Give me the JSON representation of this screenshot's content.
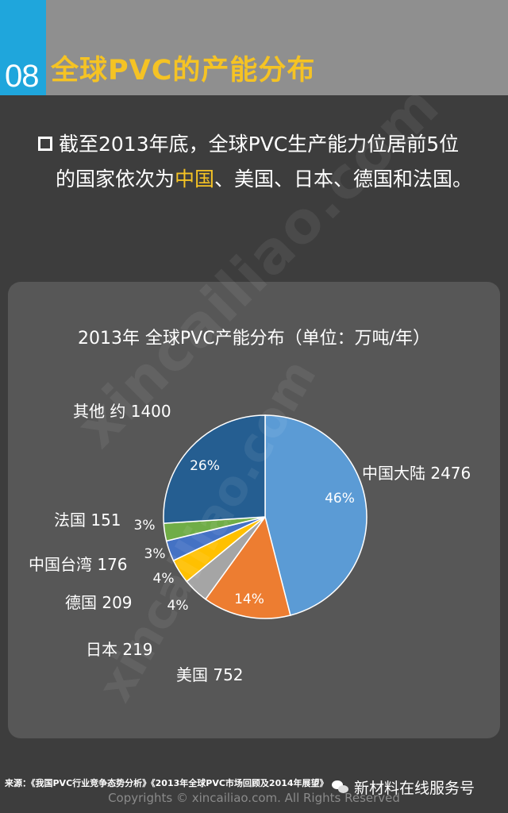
{
  "header": {
    "number": "08",
    "title": "全球PVC的产能分布"
  },
  "intro": {
    "line1": "截至2013年底，全球PVC生产能力位居前5位",
    "line2_prefix": "的国家依次为",
    "line2_highlight": "中国",
    "line2_suffix": "、美国、日本、德国和法国。"
  },
  "watermark": {
    "text": "xincailiao.com"
  },
  "colors": {
    "header_bg": "#8f8f8f",
    "number_box": "#1fa6dc",
    "title": "#f5c324",
    "highlight": "#f5c324",
    "panel_bg": "#575757"
  },
  "chart_data": {
    "type": "pie",
    "title": "2013年 全球PVC产能分布（单位：万吨/年）",
    "slices": [
      {
        "label": "中国大陆",
        "value": 2476,
        "percent_label": "46%",
        "color": "#5b9bd5"
      },
      {
        "label": "美国",
        "value": 752,
        "percent_label": "14%",
        "color": "#ed7d31"
      },
      {
        "label": "日本",
        "value": 219,
        "percent_label": "4%",
        "color": "#a5a5a5"
      },
      {
        "label": "德国",
        "value": 209,
        "percent_label": "4%",
        "color": "#ffc000"
      },
      {
        "label": "中国台湾",
        "value": 176,
        "percent_label": "3%",
        "color": "#4472c4"
      },
      {
        "label": "法国",
        "value": 151,
        "percent_label": "3%",
        "color": "#70ad47"
      },
      {
        "label": "其他 约",
        "value": 1400,
        "percent_label": "26%",
        "color": "#255e91"
      }
    ]
  },
  "footer": {
    "source": "来源：《我国PVC行业竞争态势分析》《2013年全球PVC市场回顾及2014年展望》",
    "wechat": "新材料在线服务号",
    "copyright": "Copyrights © xincailiao.com. All Rights Reserved"
  }
}
